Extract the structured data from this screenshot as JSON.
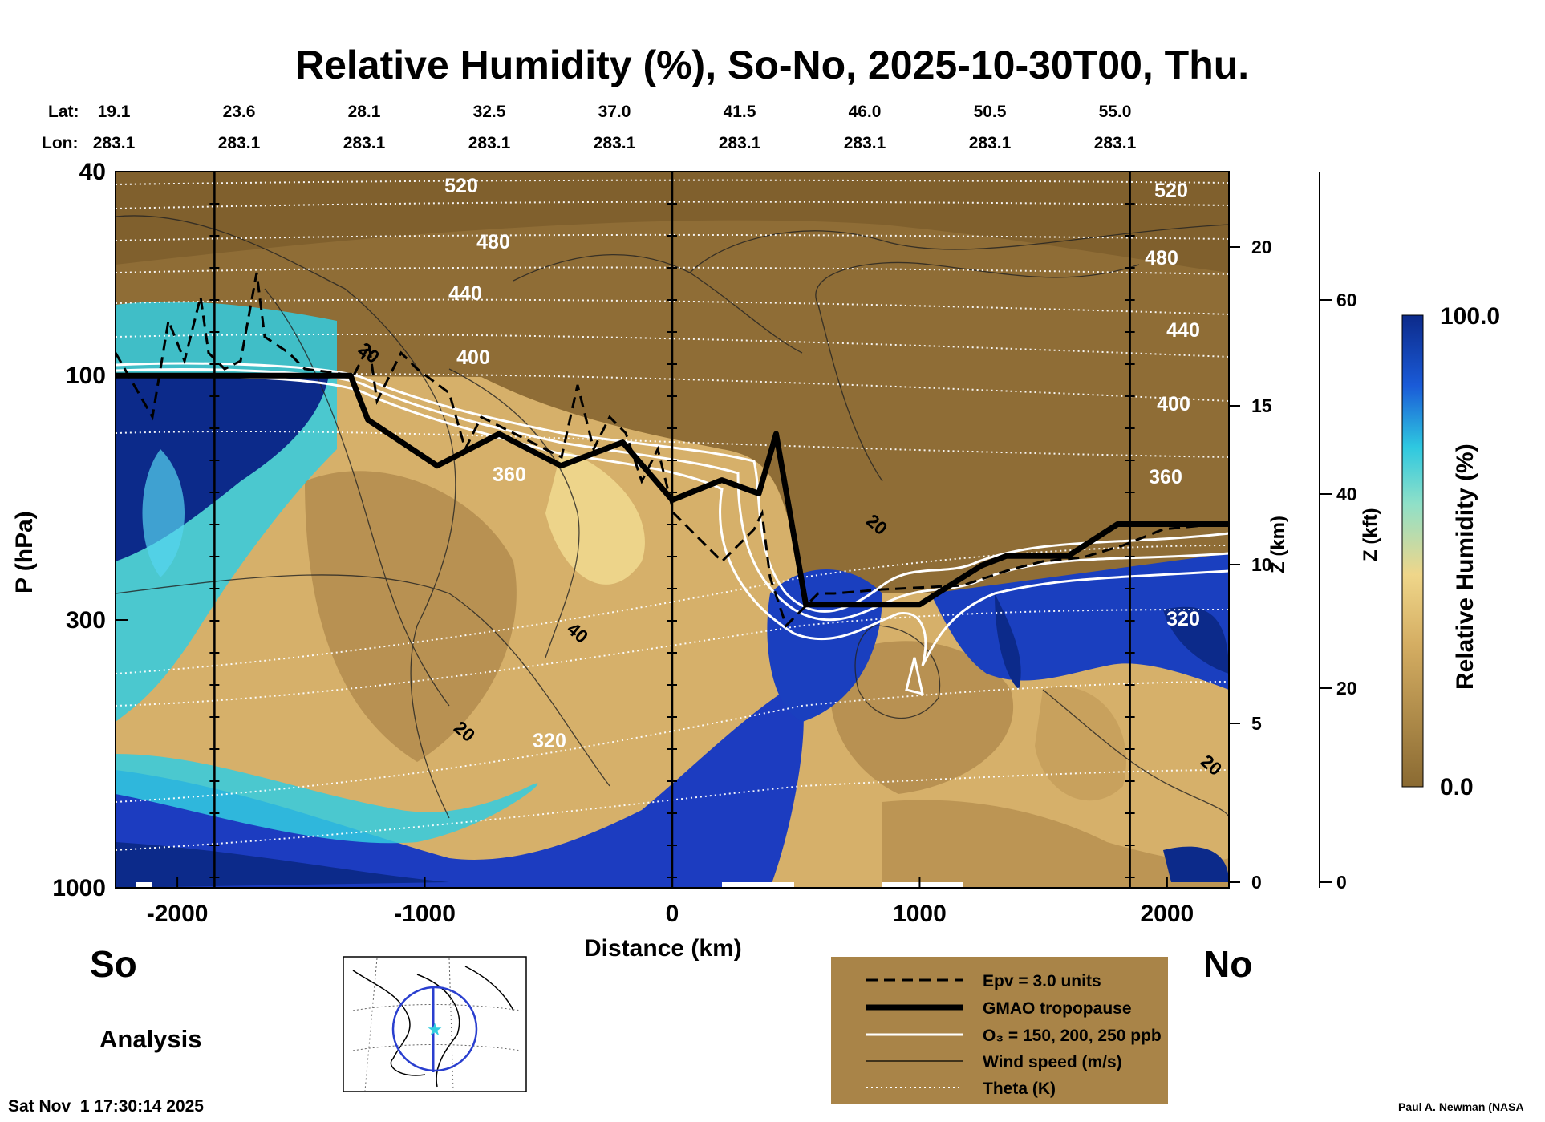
{
  "chart_data": {
    "type": "heatmap",
    "title": "Relative Humidity (%), So-No, 2025-10-30T00, Thu.",
    "xlabel": "Distance (km)",
    "ylabel": "P (hPa)",
    "z_label": "Z (km)",
    "kft_label": "Z (kft)",
    "xlim": [
      -2250,
      2250
    ],
    "x_ticks": [
      "-2000",
      "-1000",
      "0",
      "1000",
      "2000"
    ],
    "x_tick_values": [
      -2000,
      -1000,
      0,
      1000,
      2000
    ],
    "y_ticks": [
      "40",
      "100",
      "300",
      "1000"
    ],
    "y_tick_values": [
      40,
      100,
      300,
      1000
    ],
    "z_km_ticks": [
      "0",
      "5",
      "10",
      "15",
      "20"
    ],
    "z_km_values": [
      0,
      5,
      10,
      15,
      20
    ],
    "z_kft_ticks": [
      "0",
      "20",
      "40",
      "60"
    ],
    "z_kft_values": [
      0,
      20,
      40,
      60
    ],
    "lat_label": "Lat:",
    "lon_label": "Lon:",
    "lat": [
      "19.1",
      "23.6",
      "28.1",
      "32.5",
      "37.0",
      "41.5",
      "46.0",
      "50.5",
      "55.0"
    ],
    "lon": [
      "283.1",
      "283.1",
      "283.1",
      "283.1",
      "283.1",
      "283.1",
      "283.1",
      "283.1",
      "283.1"
    ],
    "colorbar": {
      "label": "Relative Humidity (%)",
      "max": "100.0",
      "min": "0.0",
      "range": [
        0,
        100
      ]
    },
    "theta_labels": [
      "520",
      "480",
      "440",
      "400",
      "360",
      "320"
    ],
    "theta_levels": [
      520,
      480,
      440,
      400,
      360,
      320
    ],
    "wind_labels": [
      "20",
      "40"
    ],
    "tropopause_pressure_hPa": {
      "x": [
        -2250,
        -1300,
        -1230,
        -950,
        -700,
        -450,
        -200,
        0,
        200,
        350,
        420,
        540,
        1000,
        1250,
        1350,
        1600,
        1800,
        2250
      ],
      "p": [
        100,
        100,
        122,
        150,
        130,
        150,
        135,
        175,
        160,
        170,
        130,
        280,
        280,
        235,
        225,
        225,
        195,
        195
      ]
    },
    "legend": [
      {
        "label": "Epv = 3.0 units",
        "style": "dashed"
      },
      {
        "label": "GMAO tropopause",
        "style": "thick"
      },
      {
        "label": "O₃ = 150, 200, 250 ppb",
        "style": "white"
      },
      {
        "label": "Wind speed (m/s)",
        "style": "thin"
      },
      {
        "label": "Theta (K)",
        "style": "dotted"
      }
    ],
    "legend_position": "bottom-right"
  },
  "labels": {
    "south": "So",
    "north": "No",
    "analysis": "Analysis",
    "timestamp": "Sat Nov  1 17:30:14 2025",
    "credit": "Paul A. Newman (NASA"
  },
  "colors": {
    "humid": "#0c2a8a",
    "mid": "#2ec8e0",
    "dry": "#8a6a32",
    "legend_bg": "#a98448"
  }
}
